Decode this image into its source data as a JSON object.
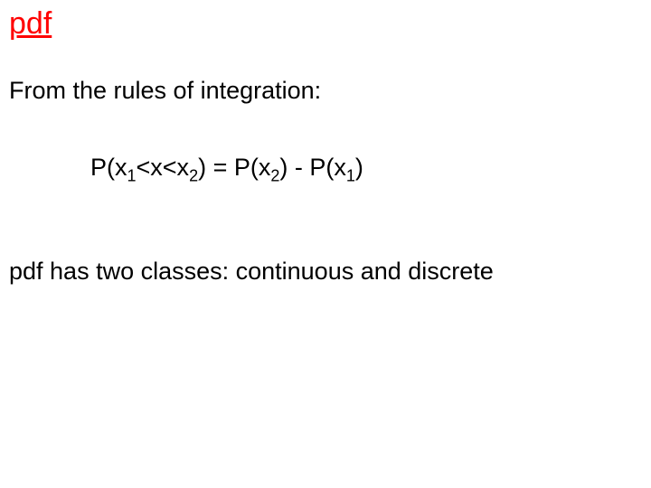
{
  "slide": {
    "title": "pdf",
    "title_color": "#ff0000",
    "title_fontsize": 34,
    "body_color": "#000000",
    "body_fontsize": 27,
    "line1": "From the rules of integration:",
    "equation": {
      "p1": "P(x",
      "s1": "1",
      "p2": "<x<x",
      "s2": "2",
      "p3": ") = P(x",
      "s3": "2",
      "p4": ") - P(x",
      "s4": "1",
      "p5": ")"
    },
    "line2": "pdf has two classes:  continuous and discrete",
    "background_color": "#ffffff"
  }
}
